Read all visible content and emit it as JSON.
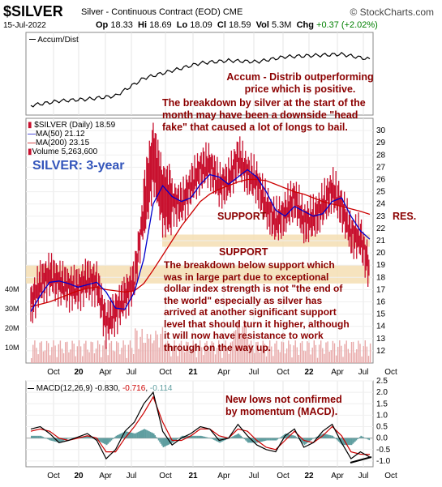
{
  "header": {
    "symbol": "$SILVER",
    "description": "Silver - Continuous Contract (EOD) CME",
    "source": "© StockCharts.com",
    "date": "15-Jul-2022",
    "open_label": "Op",
    "open": "18.33",
    "high_label": "Hi",
    "high": "18.69",
    "low_label": "Lo",
    "low": "18.09",
    "close_label": "Cl",
    "close": "18.59",
    "vol_label": "Vol",
    "vol": "5.3M",
    "chg_label": "Chg",
    "chg": "+0.37 (+2.02%)"
  },
  "accum_panel": {
    "legend": "Accum/Dist",
    "annotation": [
      "Accum - Distrib outperforming",
      "price which is positive.",
      "The breakdown by silver at the start of the",
      "month may have been a downside \"head",
      "fake\" that caused a lot of longs to bail."
    ]
  },
  "price_panel": {
    "legend_title": "$SILVER (Daily) 18.59",
    "legend_ma50": "MA(50) 21.12",
    "legend_ma200": "MA(200) 23.15",
    "legend_volume": "Volume 5,263,600",
    "label": "SILVER: 3-year",
    "support_upper": "SUPPORT",
    "res": "RES.",
    "support_lower": "SUPPORT",
    "annotation": [
      "The breakdown below support which",
      "was in large part due to exceptional",
      "dollar index strength is not \"the end of",
      "the world\" especially as silver has",
      "arrived at another significant support",
      "level that should turn it higher, although",
      "it will now have resistance to work",
      "through on the way up."
    ],
    "volume_ticks": [
      "40M",
      "30M",
      "20M",
      "10M"
    ]
  },
  "macd_panel": {
    "legend_prefix": "MACD(12,26,9)",
    "legend_macd": "-0.830",
    "legend_signal": "-0.716",
    "legend_hist": "-0.114",
    "annotation": [
      "New lows not confirmed",
      "by momentum (MACD)."
    ]
  },
  "x_ticks": [
    "Oct",
    "20",
    "Apr",
    "Jul",
    "Oct",
    "21",
    "Apr",
    "Jul",
    "Oct",
    "22",
    "Apr",
    "Jul",
    "Oct"
  ],
  "colors": {
    "price_bars": "#c8102e",
    "ma50": "#0000cc",
    "ma200": "#cc0000",
    "support_band": "#f5deb3",
    "volume": "#e8a8a8",
    "annotation": "#8b0000",
    "macd_hist": "#5f9ea0",
    "label_blue": "#3355bb"
  },
  "chart_data": [
    {
      "type": "line",
      "title": "Accum/Dist",
      "x": [
        "2019-07",
        "2019-10",
        "2020-01",
        "2020-04",
        "2020-07",
        "2020-10",
        "2021-01",
        "2021-04",
        "2021-07",
        "2021-10",
        "2022-01",
        "2022-04",
        "2022-07"
      ],
      "series": [
        {
          "name": "Accum/Dist",
          "values": [
            0.05,
            0.12,
            0.15,
            0.2,
            0.48,
            0.6,
            0.72,
            0.76,
            0.74,
            0.82,
            0.84,
            0.86,
            0.78
          ]
        }
      ]
    },
    {
      "type": "line",
      "title": "$SILVER (Daily) 18.59",
      "x": [
        "2019-07",
        "2019-08",
        "2019-09",
        "2019-10",
        "2019-11",
        "2019-12",
        "2020-01",
        "2020-02",
        "2020-03",
        "2020-04",
        "2020-05",
        "2020-06",
        "2020-07",
        "2020-08",
        "2020-09",
        "2020-10",
        "2020-11",
        "2020-12",
        "2021-01",
        "2021-02",
        "2021-03",
        "2021-04",
        "2021-05",
        "2021-06",
        "2021-07",
        "2021-08",
        "2021-09",
        "2021-10",
        "2021-11",
        "2021-12",
        "2022-01",
        "2022-02",
        "2022-03",
        "2022-04",
        "2022-05",
        "2022-06",
        "2022-07"
      ],
      "series": [
        {
          "name": "$SILVER",
          "values": [
            15.8,
            17.5,
            18.2,
            17.6,
            17.2,
            17.1,
            17.8,
            17.5,
            14.2,
            15.2,
            16.4,
            17.8,
            23.5,
            28.0,
            24.5,
            24.2,
            24.0,
            25.5,
            26.8,
            27.2,
            25.5,
            25.8,
            27.8,
            26.5,
            25.8,
            23.8,
            22.5,
            23.2,
            24.5,
            22.5,
            22.8,
            23.8,
            25.2,
            23.8,
            21.5,
            21.2,
            18.59
          ]
        },
        {
          "name": "MA(50)",
          "values": [
            15.2,
            16.5,
            17.6,
            17.7,
            17.5,
            17.2,
            17.4,
            17.6,
            16.8,
            15.5,
            15.4,
            16.8,
            19.5,
            24.0,
            25.5,
            24.6,
            24.2,
            24.5,
            25.6,
            26.4,
            26.2,
            25.6,
            26.2,
            26.8,
            26.2,
            25.0,
            23.5,
            23.0,
            23.8,
            23.4,
            23.0,
            23.2,
            24.2,
            24.5,
            23.0,
            21.8,
            21.12
          ]
        },
        {
          "name": "MA(200)",
          "values": [
            15.6,
            15.8,
            16.0,
            16.3,
            16.6,
            16.9,
            17.1,
            17.2,
            17.0,
            16.9,
            16.8,
            16.9,
            17.5,
            18.6,
            19.8,
            21.0,
            22.2,
            23.2,
            24.2,
            24.8,
            25.2,
            25.5,
            25.8,
            26.0,
            26.0,
            25.9,
            25.6,
            25.3,
            25.0,
            24.8,
            24.5,
            24.2,
            24.0,
            23.8,
            23.6,
            23.4,
            23.15
          ]
        }
      ],
      "support_zones": [
        [
          20.5,
          21.5
        ],
        [
          17.5,
          19.0
        ]
      ],
      "ylim": [
        11,
        31
      ],
      "yticks": [
        12,
        13,
        14,
        15,
        16,
        17,
        18,
        19,
        20,
        21,
        22,
        23,
        24,
        25,
        26,
        27,
        28,
        29,
        30
      ]
    },
    {
      "type": "line",
      "title": "MACD(12,26,9)",
      "x": [
        "2019-07",
        "2019-08",
        "2019-09",
        "2019-10",
        "2019-11",
        "2019-12",
        "2020-01",
        "2020-02",
        "2020-03",
        "2020-04",
        "2020-05",
        "2020-06",
        "2020-07",
        "2020-08",
        "2020-09",
        "2020-10",
        "2020-11",
        "2020-12",
        "2021-01",
        "2021-02",
        "2021-03",
        "2021-04",
        "2021-05",
        "2021-06",
        "2021-07",
        "2021-08",
        "2021-09",
        "2021-10",
        "2021-11",
        "2021-12",
        "2022-01",
        "2022-02",
        "2022-03",
        "2022-04",
        "2022-05",
        "2022-06",
        "2022-07"
      ],
      "series": [
        {
          "name": "MACD",
          "values": [
            0.4,
            0.5,
            0.2,
            -0.2,
            -0.1,
            0.05,
            0.2,
            -0.1,
            -0.9,
            -0.5,
            0.3,
            0.7,
            1.5,
            2.0,
            0.3,
            -0.3,
            0.0,
            0.2,
            0.5,
            0.4,
            -0.1,
            0.0,
            0.6,
            0.1,
            -0.3,
            -0.5,
            -0.6,
            0.1,
            0.4,
            -0.4,
            -0.2,
            0.3,
            0.6,
            -0.2,
            -0.9,
            -0.6,
            -0.83
          ]
        },
        {
          "name": "Signal",
          "values": [
            0.3,
            0.4,
            0.3,
            0.0,
            -0.1,
            0.0,
            0.1,
            0.0,
            -0.6,
            -0.6,
            0.0,
            0.5,
            1.1,
            1.8,
            0.7,
            -0.1,
            -0.1,
            0.1,
            0.4,
            0.4,
            0.1,
            0.0,
            0.4,
            0.3,
            -0.1,
            -0.4,
            -0.5,
            -0.1,
            0.3,
            -0.1,
            -0.2,
            0.1,
            0.5,
            0.1,
            -0.6,
            -0.7,
            -0.716
          ]
        }
      ],
      "ylim": [
        -1.25,
        2.5
      ],
      "yticks": [
        2.5,
        2.0,
        1.5,
        1.0,
        0.5,
        0.0,
        -0.5,
        -1.0
      ]
    }
  ]
}
